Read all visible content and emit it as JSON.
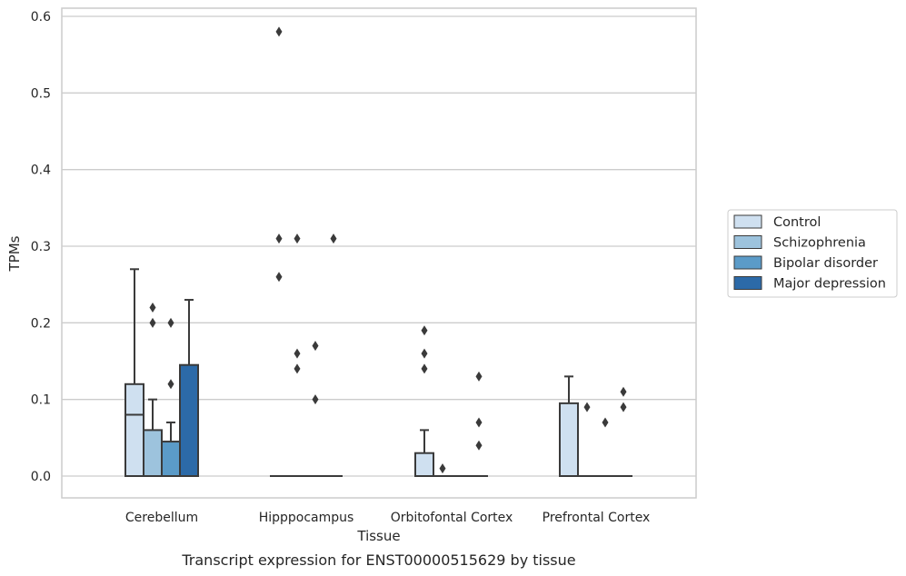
{
  "chart_data": {
    "type": "box",
    "title": "",
    "caption": "Transcript expression for ENST00000515629 by tissue",
    "xlabel": "Tissue",
    "ylabel": "TPMs",
    "ylim": [
      -0.03,
      0.61
    ],
    "yticks": [
      0.0,
      0.1,
      0.2,
      0.3,
      0.4,
      0.5,
      0.6
    ],
    "ytick_labels": [
      "0.0",
      "0.1",
      "0.2",
      "0.3",
      "0.4",
      "0.5",
      "0.6"
    ],
    "grid": "horizontal",
    "legend_position": "right",
    "categories": [
      "Cerebellum",
      "Hipppocampus",
      "Orbitofontal Cortex",
      "Prefrontal Cortex"
    ],
    "series": [
      {
        "name": "Control",
        "color": "#cfe0f0",
        "boxes": [
          {
            "q1": 0.0,
            "median": 0.08,
            "q3": 0.12,
            "whisker_low": 0.0,
            "whisker_high": 0.27,
            "outliers": []
          },
          {
            "q1": 0.0,
            "median": 0.0,
            "q3": 0.0,
            "whisker_low": 0.0,
            "whisker_high": 0.0,
            "outliers": [
              0.58,
              0.31,
              0.26
            ]
          },
          {
            "q1": 0.0,
            "median": 0.0,
            "q3": 0.03,
            "whisker_low": 0.0,
            "whisker_high": 0.06,
            "outliers": [
              0.19,
              0.16,
              0.14
            ]
          },
          {
            "q1": 0.0,
            "median": 0.0,
            "q3": 0.095,
            "whisker_low": 0.0,
            "whisker_high": 0.13,
            "outliers": []
          }
        ]
      },
      {
        "name": "Schizophrenia",
        "color": "#9dc3dd",
        "boxes": [
          {
            "q1": 0.0,
            "median": 0.0,
            "q3": 0.06,
            "whisker_low": 0.0,
            "whisker_high": 0.1,
            "outliers": [
              0.22,
              0.2
            ]
          },
          {
            "q1": 0.0,
            "median": 0.0,
            "q3": 0.0,
            "whisker_low": 0.0,
            "whisker_high": 0.0,
            "outliers": [
              0.31,
              0.16,
              0.14
            ]
          },
          {
            "q1": 0.0,
            "median": 0.0,
            "q3": 0.0,
            "whisker_low": 0.0,
            "whisker_high": 0.0,
            "outliers": [
              0.01
            ]
          },
          {
            "q1": 0.0,
            "median": 0.0,
            "q3": 0.0,
            "whisker_low": 0.0,
            "whisker_high": 0.0,
            "outliers": [
              0.09
            ]
          }
        ]
      },
      {
        "name": "Bipolar disorder",
        "color": "#5b9bc8",
        "boxes": [
          {
            "q1": 0.0,
            "median": 0.0,
            "q3": 0.045,
            "whisker_low": 0.0,
            "whisker_high": 0.07,
            "outliers": [
              0.2,
              0.12
            ]
          },
          {
            "q1": 0.0,
            "median": 0.0,
            "q3": 0.0,
            "whisker_low": 0.0,
            "whisker_high": 0.0,
            "outliers": [
              0.17,
              0.1
            ]
          },
          {
            "q1": 0.0,
            "median": 0.0,
            "q3": 0.0,
            "whisker_low": 0.0,
            "whisker_high": 0.0,
            "outliers": []
          },
          {
            "q1": 0.0,
            "median": 0.0,
            "q3": 0.0,
            "whisker_low": 0.0,
            "whisker_high": 0.0,
            "outliers": [
              0.07
            ]
          }
        ]
      },
      {
        "name": "Major depression",
        "color": "#2c6aa8",
        "boxes": [
          {
            "q1": 0.0,
            "median": 0.0,
            "q3": 0.145,
            "whisker_low": 0.0,
            "whisker_high": 0.23,
            "outliers": []
          },
          {
            "q1": 0.0,
            "median": 0.0,
            "q3": 0.0,
            "whisker_low": 0.0,
            "whisker_high": 0.0,
            "outliers": [
              0.31
            ]
          },
          {
            "q1": 0.0,
            "median": 0.0,
            "q3": 0.0,
            "whisker_low": 0.0,
            "whisker_high": 0.0,
            "outliers": [
              0.13,
              0.07,
              0.04
            ]
          },
          {
            "q1": 0.0,
            "median": 0.0,
            "q3": 0.0,
            "whisker_low": 0.0,
            "whisker_high": 0.0,
            "outliers": [
              0.11,
              0.09
            ]
          }
        ]
      }
    ]
  }
}
